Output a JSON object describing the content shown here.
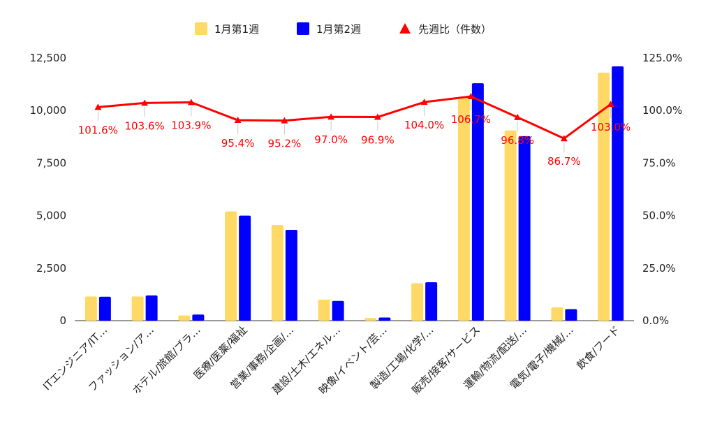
{
  "chart_data": {
    "type": "bar",
    "categories": [
      "ITエンジニア/IT…",
      "ファッション/ア…",
      "ホテル/旅館/ブラ…",
      "医療/医薬/福祉",
      "営業/事務/企画/…",
      "建設/土木/エネル…",
      "映像/イベント/芸…",
      "製造/工場/化学/…",
      "販売/接客/サービス",
      "運輸/物流/配送/…",
      "電気/電子/機械/…",
      "飲食/フード"
    ],
    "series": [
      {
        "name": "1月第1週",
        "type": "bar",
        "axis": "left",
        "color": "#FFD966",
        "values": [
          1150,
          1150,
          250,
          5200,
          4550,
          1000,
          130,
          1780,
          10600,
          9050,
          630,
          11800
        ]
      },
      {
        "name": "1月第2週",
        "type": "bar",
        "axis": "left",
        "color": "#0000FF",
        "values": [
          1140,
          1200,
          290,
          5000,
          4320,
          940,
          150,
          1830,
          11300,
          8780,
          550,
          12100
        ]
      },
      {
        "name": "先週比（件数）",
        "type": "line",
        "axis": "right",
        "color": "#FF0000",
        "values": [
          101.6,
          103.6,
          103.9,
          95.4,
          95.2,
          97.0,
          96.9,
          104.0,
          106.7,
          96.8,
          86.7,
          103.0
        ],
        "labels": [
          "101.6%",
          "103.6%",
          "103.9%",
          "95.4%",
          "95.2%",
          "97.0%",
          "96.9%",
          "104.0%",
          "106.7%",
          "96.8%",
          "86.7%",
          "103.0%"
        ]
      }
    ],
    "y_left": {
      "min": 0,
      "max": 12500,
      "ticks": [
        "0",
        "2,500",
        "5,000",
        "7,500",
        "10,000",
        "12,500"
      ],
      "tick_values": [
        0,
        2500,
        5000,
        7500,
        10000,
        12500
      ]
    },
    "y_right": {
      "min": 0,
      "max": 125,
      "ticks": [
        "0.0%",
        "25.0%",
        "50.0%",
        "75.0%",
        "100.0%",
        "125.0%"
      ],
      "tick_values": [
        0,
        25,
        50,
        75,
        100,
        125
      ]
    },
    "legend_position": "top-center",
    "grid": false
  }
}
